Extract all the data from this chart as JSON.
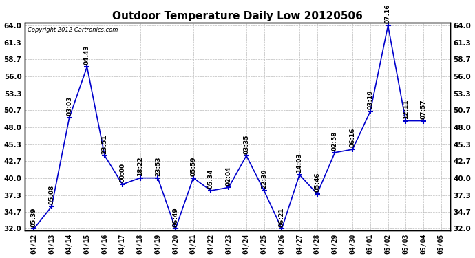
{
  "title": "Outdoor Temperature Daily Low 20120506",
  "copyright": "Copyright 2012 Cartronics.com",
  "dates": [
    "04/12",
    "04/13",
    "04/14",
    "04/15",
    "04/16",
    "04/17",
    "04/18",
    "04/19",
    "04/20",
    "04/21",
    "04/22",
    "04/23",
    "04/24",
    "04/25",
    "04/26",
    "04/27",
    "04/28",
    "04/29",
    "04/30",
    "05/01",
    "05/02",
    "05/03",
    "05/04",
    "05/05"
  ],
  "point_labels": [
    [
      0,
      32.0,
      "05:39"
    ],
    [
      1,
      35.5,
      "05:08"
    ],
    [
      2,
      49.5,
      "03:03"
    ],
    [
      3,
      57.5,
      "04:43"
    ],
    [
      4,
      43.5,
      "23:51"
    ],
    [
      5,
      39.0,
      "00:00"
    ],
    [
      6,
      40.0,
      "18:22"
    ],
    [
      7,
      40.0,
      "23:53"
    ],
    [
      8,
      32.0,
      "06:49"
    ],
    [
      9,
      40.0,
      "05:59"
    ],
    [
      10,
      38.0,
      "05:34"
    ],
    [
      11,
      38.5,
      "02:04"
    ],
    [
      12,
      43.5,
      "03:35"
    ],
    [
      13,
      38.0,
      "22:39"
    ],
    [
      14,
      32.0,
      "06:21"
    ],
    [
      15,
      40.5,
      "14:03"
    ],
    [
      16,
      37.5,
      "05:46"
    ],
    [
      17,
      44.0,
      "02:58"
    ],
    [
      18,
      44.5,
      "06:16"
    ],
    [
      19,
      50.5,
      "03:19"
    ],
    [
      20,
      64.0,
      "07:16"
    ],
    [
      21,
      49.0,
      "12:11"
    ],
    [
      22,
      49.0,
      "07:57"
    ]
  ],
  "ylim": [
    32.0,
    64.0
  ],
  "yticks": [
    32.0,
    34.7,
    37.3,
    40.0,
    42.7,
    45.3,
    48.0,
    50.7,
    53.3,
    56.0,
    58.7,
    61.3,
    64.0
  ],
  "line_color": "#0000cc",
  "bg_color": "#ffffff",
  "grid_color": "#bbbbbb",
  "title_fontsize": 11,
  "annot_fontsize": 6.5
}
